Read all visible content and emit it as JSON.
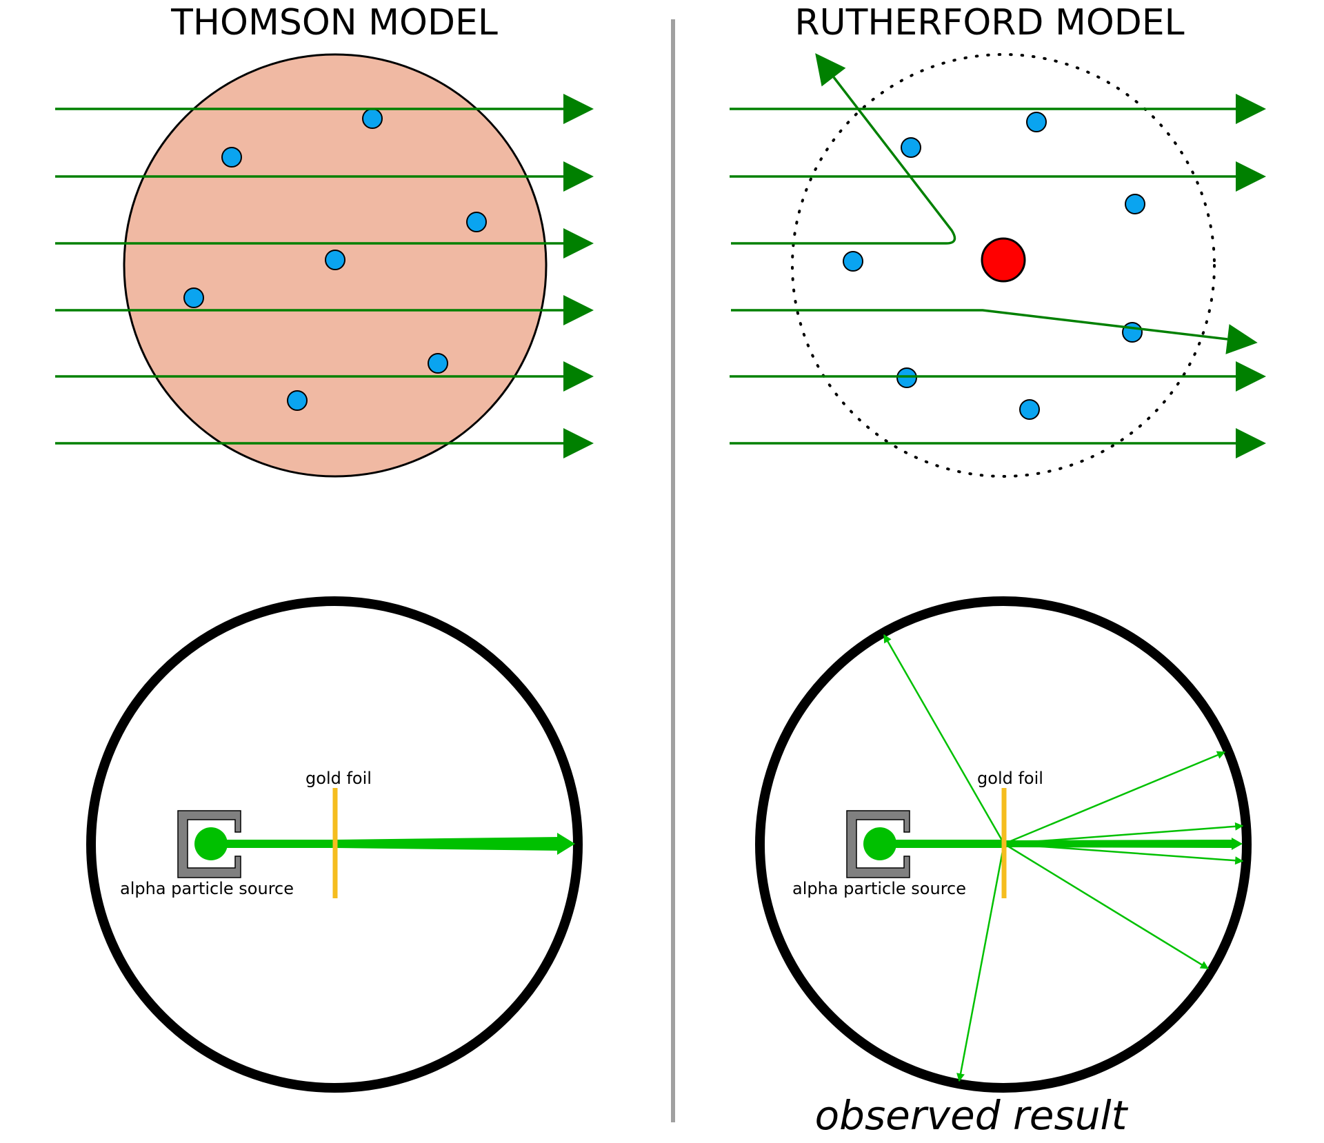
{
  "titles": {
    "thomson": "THOMSON MODEL",
    "rutherford": "RUTHERFORD MODEL"
  },
  "labels": {
    "thomson_gold_foil": "gold foil",
    "thomson_source": "alpha particle source",
    "rutherford_gold_foil": "gold foil",
    "rutherford_source": "alpha particle source",
    "observed_result": "observed result"
  },
  "colors": {
    "trajectory": "#008000",
    "beam": "#00c000",
    "electron": "#0aa4f0",
    "nucleus": "#ff0000",
    "plum_pudding": "#f0b9a3",
    "gold_foil": "#f5bd1f",
    "source_housing": "#808080",
    "divider": "#a0a0a0",
    "outline": "#000000"
  }
}
